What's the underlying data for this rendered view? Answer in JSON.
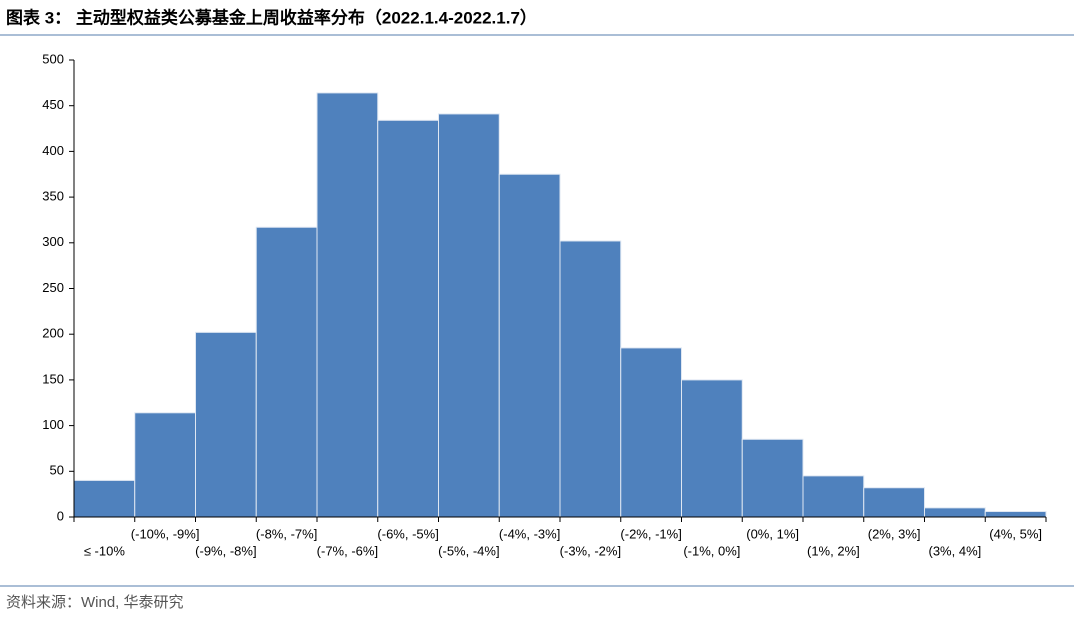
{
  "title": "图表 3：  主动型权益类公募基金上周收益率分布（2022.1.4-2022.1.7）",
  "source": "资料来源：Wind, 华泰研究",
  "chart_data": {
    "type": "bar",
    "categories": [
      "≤ -10%",
      "(-10%, -9%]",
      "(-9%, -8%]",
      "(-8%, -7%]",
      "(-7%, -6%]",
      "(-6%, -5%]",
      "(-5%, -4%]",
      "(-4%, -3%]",
      "(-3%, -2%]",
      "(-2%, -1%]",
      "(-1%, 0%]",
      "(0%, 1%]",
      "(1%, 2%]",
      "(2%, 3%]",
      "(3%, 4%]",
      "(4%, 5%]"
    ],
    "values": [
      40,
      114,
      202,
      317,
      464,
      434,
      441,
      375,
      302,
      185,
      150,
      85,
      45,
      32,
      10,
      6
    ],
    "color": "#4f81bd",
    "ylim": [
      0,
      500
    ],
    "yticks": [
      0,
      50,
      100,
      150,
      200,
      250,
      300,
      350,
      400,
      450,
      500
    ],
    "grid": false
  }
}
